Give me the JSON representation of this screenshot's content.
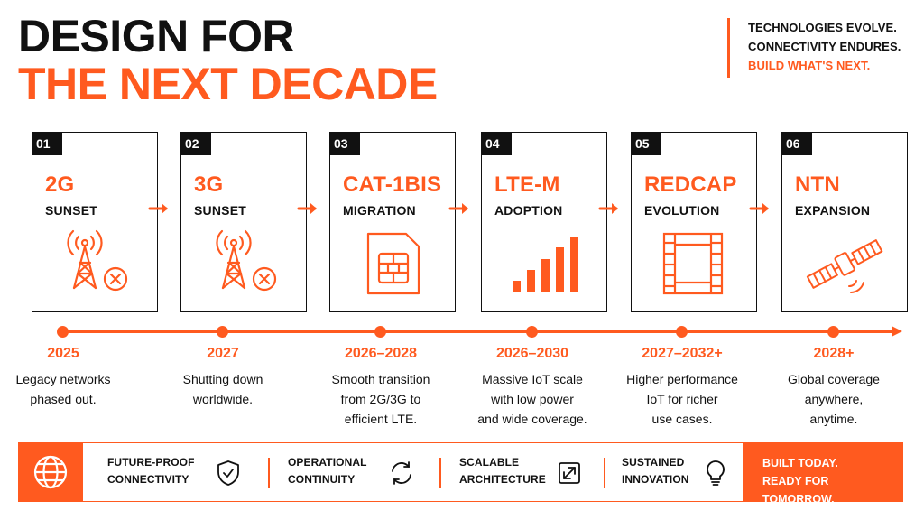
{
  "header": {
    "title_line1": "DESIGN FOR",
    "title_line2": "THE NEXT DECADE",
    "tagline": [
      "TECHNOLOGIES EVOLVE.",
      "CONNECTIVITY ENDURES.",
      "BUILD WHAT'S NEXT."
    ]
  },
  "colors": {
    "accent": "#ff5a1f",
    "ink": "#111111",
    "background": "#ffffff"
  },
  "steps": [
    {
      "num": "01",
      "tech": "2G",
      "subtitle": "SUNSET",
      "icon": "cell-tower-off-icon",
      "year": "2025",
      "desc": [
        "Legacy networks",
        "phased out."
      ]
    },
    {
      "num": "02",
      "tech": "3G",
      "subtitle": "SUNSET",
      "icon": "cell-tower-off-icon",
      "year": "2027",
      "desc": [
        "Shutting down",
        "worldwide."
      ]
    },
    {
      "num": "03",
      "tech": "CAT-1BIS",
      "subtitle": "MIGRATION",
      "icon": "sim-card-icon",
      "year": "2026–2028",
      "desc": [
        "Smooth transition",
        "from 2G/3G to",
        "efficient LTE."
      ]
    },
    {
      "num": "04",
      "tech": "LTE-M",
      "subtitle": "ADOPTION",
      "icon": "signal-bars-icon",
      "year": "2026–2030",
      "desc": [
        "Massive IoT scale",
        "with low power",
        "and wide coverage."
      ]
    },
    {
      "num": "05",
      "tech": "REDCAP",
      "subtitle": "EVOLUTION",
      "icon": "film-strip-icon",
      "year": "2027–2032+",
      "desc": [
        "Higher performance",
        "IoT for richer",
        "use cases."
      ]
    },
    {
      "num": "06",
      "tech": "NTN",
      "subtitle": "EXPANSION",
      "icon": "satellite-icon",
      "year": "2028+",
      "desc": [
        "Global coverage",
        "anywhere,",
        "anytime."
      ]
    }
  ],
  "footer": {
    "icon": "globe-icon",
    "pillars": [
      {
        "line1": "FUTURE-PROOF",
        "line2": "CONNECTIVITY",
        "icon": "shield-check-icon"
      },
      {
        "line1": "OPERATIONAL",
        "line2": "CONTINUITY",
        "icon": "refresh-cycle-icon"
      },
      {
        "line1": "SCALABLE",
        "line2": "ARCHITECTURE",
        "icon": "expand-arrows-icon"
      },
      {
        "line1": "SUSTAINED",
        "line2": "INNOVATION",
        "icon": "lightbulb-icon"
      }
    ],
    "cta": [
      "BUILT TODAY.",
      "READY FOR TOMORROW."
    ]
  }
}
